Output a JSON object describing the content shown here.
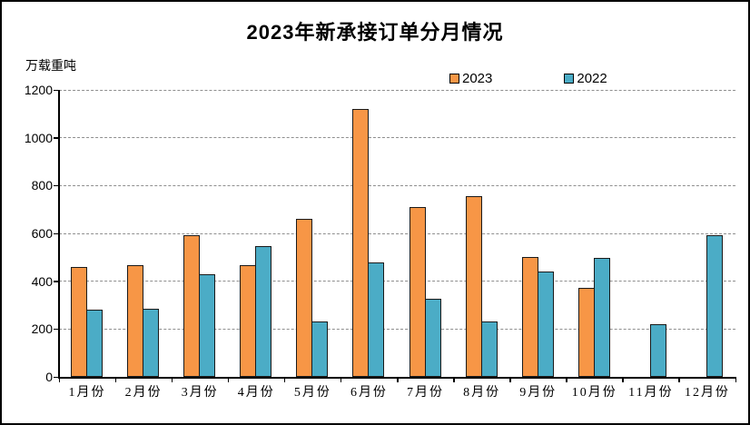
{
  "title": "2023年新承接订单分月情况",
  "y_axis_unit_label": "万载重吨",
  "legend": {
    "items": [
      {
        "label": "2023",
        "color": "#F79646"
      },
      {
        "label": "2022",
        "color": "#4BACC6"
      }
    ]
  },
  "chart_data": {
    "type": "bar",
    "title": "2023年新承接订单分月情况",
    "ylabel": "万载重吨",
    "xlabel": "",
    "categories": [
      "1月份",
      "2月份",
      "3月份",
      "4月份",
      "5月份",
      "6月份",
      "7月份",
      "8月份",
      "9月份",
      "10月份",
      "11月份",
      "12月份"
    ],
    "series": [
      {
        "name": "2023",
        "color": "#F79646",
        "values": [
          459,
          466,
          593,
          467,
          660,
          1122,
          709,
          755,
          502,
          373,
          null,
          null
        ]
      },
      {
        "name": "2022",
        "color": "#4BACC6",
        "values": [
          280,
          284,
          428,
          545,
          230,
          478,
          327,
          232,
          440,
          497,
          220,
          591
        ]
      }
    ],
    "ylim": [
      0,
      1200
    ],
    "yticks": [
      0,
      200,
      400,
      600,
      800,
      1000,
      1200
    ],
    "grid": "horizontal-dashed",
    "gridline_color": "#8f8f8f",
    "axis_color": "#000000",
    "bar_border_color": "#1a1a1a",
    "legend_position": "top-center-inside"
  }
}
